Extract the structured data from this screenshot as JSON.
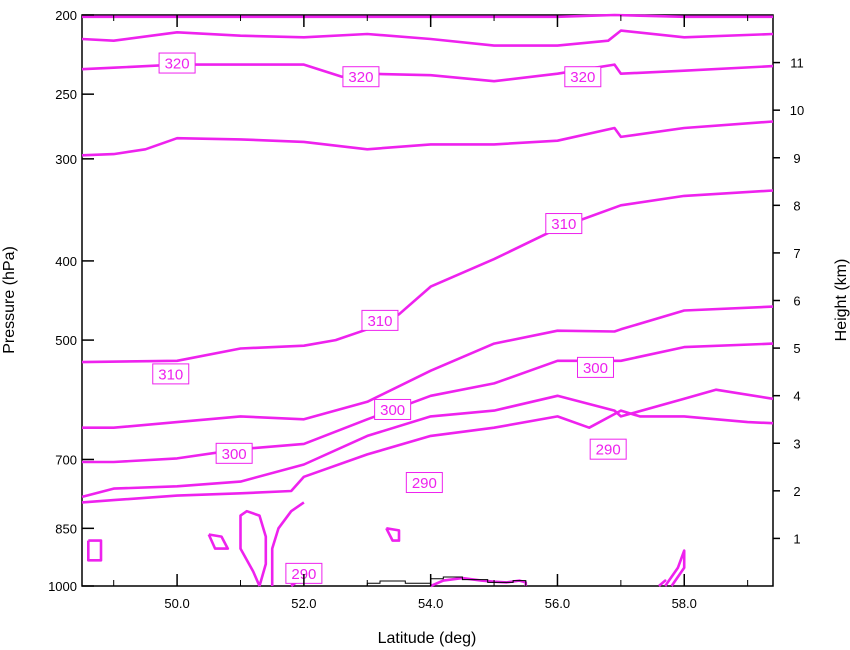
{
  "chart_data": {
    "type": "line",
    "subtype": "contour-cross-section",
    "title": "",
    "xlabel": "Latitude (deg)",
    "ylabel": "Pressure (hPa)",
    "y2label": "Height (km)",
    "xlim": [
      48.5,
      59.4
    ],
    "ylim": [
      1000,
      200
    ],
    "yscale": "log",
    "y2lim": [
      0,
      12
    ],
    "x_ticks": [
      {
        "value": 50,
        "label": "50.0"
      },
      {
        "value": 52,
        "label": "52.0"
      },
      {
        "value": 54,
        "label": "54.0"
      },
      {
        "value": 56,
        "label": "56.0"
      },
      {
        "value": 58,
        "label": "58.0"
      }
    ],
    "y_ticks": [
      {
        "value": 200,
        "label": "200"
      },
      {
        "value": 250,
        "label": "250"
      },
      {
        "value": 300,
        "label": "300"
      },
      {
        "value": 400,
        "label": "400"
      },
      {
        "value": 500,
        "label": "500"
      },
      {
        "value": 700,
        "label": "700"
      },
      {
        "value": 850,
        "label": "850"
      },
      {
        "value": 1000,
        "label": "1000"
      }
    ],
    "y2_ticks": [
      {
        "value": 1,
        "label": "1"
      },
      {
        "value": 2,
        "label": "2"
      },
      {
        "value": 3,
        "label": "3"
      },
      {
        "value": 4,
        "label": "4"
      },
      {
        "value": 5,
        "label": "5"
      },
      {
        "value": 6,
        "label": "6"
      },
      {
        "value": 7,
        "label": "7"
      },
      {
        "value": 8,
        "label": "8"
      },
      {
        "value": 9,
        "label": "9"
      },
      {
        "value": 10,
        "label": "10"
      },
      {
        "value": 11,
        "label": "11"
      }
    ],
    "contour_color": "#ee22ee",
    "terrain_color": "#000000",
    "contours": [
      {
        "x": [
          48.5,
          50.0,
          52.0,
          54.0,
          56.0,
          56.9,
          58.0,
          59.4
        ],
        "y": [
          201,
          201,
          201,
          201,
          201,
          200,
          201,
          201
        ]
      },
      {
        "x": [
          48.5,
          49.0,
          50.0,
          51.0,
          52.0,
          53.0,
          54.0,
          55.0,
          56.0,
          56.8,
          57.0,
          58.0,
          59.4
        ],
        "y": [
          214,
          215,
          210,
          212,
          213,
          211,
          214,
          218,
          218,
          215,
          209,
          213,
          211
        ]
      },
      {
        "x": [
          48.5,
          49.0,
          50.0,
          51.0,
          52.0,
          52.6,
          53.0,
          54.0,
          55.0,
          56.0,
          56.9,
          57.0,
          58.0,
          59.4
        ],
        "y": [
          233,
          232,
          230,
          230,
          230,
          238,
          236,
          237,
          241,
          236,
          230,
          236,
          234,
          231
        ]
      },
      {
        "x": [
          48.5,
          49.0,
          49.5,
          50.0,
          51.0,
          52.0,
          53.0,
          54.0,
          55.0,
          56.0,
          56.9,
          57.0,
          58.0,
          59.4
        ],
        "y": [
          297,
          296,
          292,
          283,
          284,
          286,
          292,
          288,
          288,
          285,
          275,
          282,
          275,
          270
        ]
      },
      {
        "x": [
          48.5,
          50.0,
          51.0,
          52.0,
          52.5,
          53.0,
          53.5,
          54.0,
          55.0,
          56.0,
          57.0,
          58.0,
          59.4
        ],
        "y": [
          532,
          530,
          512,
          508,
          500,
          485,
          465,
          430,
          398,
          365,
          342,
          333,
          328
        ]
      },
      {
        "x": [
          48.5,
          49.0,
          50.0,
          51.0,
          52.0,
          53.0,
          54.0,
          55.0,
          56.0,
          56.9,
          57.0,
          58.0,
          59.4
        ],
        "y": [
          640,
          640,
          630,
          620,
          625,
          595,
          545,
          505,
          487,
          488,
          485,
          460,
          455
        ]
      },
      {
        "x": [
          48.5,
          49.0,
          50.0,
          51.0,
          52.0,
          53.0,
          54.0,
          55.0,
          56.0,
          56.9,
          57.0,
          58.0,
          59.4
        ],
        "y": [
          705,
          705,
          698,
          680,
          670,
          625,
          585,
          565,
          530,
          530,
          530,
          510,
          505
        ]
      },
      {
        "x": [
          48.5,
          49.0,
          50.0,
          51.0,
          52.0,
          53.0,
          54.0,
          55.0,
          56.0,
          56.9,
          57.0,
          58.0,
          58.5,
          59.4
        ],
        "y": [
          778,
          760,
          755,
          745,
          710,
          655,
          620,
          610,
          585,
          610,
          620,
          590,
          575,
          590
        ]
      },
      {
        "x": [
          48.5,
          49.0,
          50.0,
          51.0,
          51.8,
          52.0,
          53.0,
          54.0,
          55.0,
          56.0,
          56.5,
          57.0,
          57.3,
          58.0,
          59.0,
          59.4
        ],
        "y": [
          790,
          785,
          775,
          770,
          765,
          735,
          690,
          655,
          640,
          620,
          640,
          610,
          620,
          620,
          630,
          632
        ]
      },
      {
        "x": [
          52.0,
          51.8,
          51.6,
          51.5,
          51.5,
          51.5
        ],
        "y": [
          790,
          810,
          850,
          900,
          960,
          1000
        ]
      },
      {
        "x": [
          51.3,
          51.4,
          51.4,
          51.3,
          51.1,
          51.0,
          51.0,
          51.2,
          51.3
        ],
        "y": [
          1000,
          940,
          870,
          820,
          810,
          820,
          900,
          960,
          1000
        ]
      },
      {
        "x": [
          51.8,
          52.0,
          52.0,
          51.9,
          51.8
        ],
        "y": [
          1000,
          975,
          960,
          980,
          1000
        ]
      },
      {
        "x": [
          48.6,
          48.8,
          48.8,
          48.6,
          48.6
        ],
        "y": [
          880,
          880,
          930,
          930,
          880
        ]
      },
      {
        "x": [
          50.5,
          50.7,
          50.8,
          50.6,
          50.5
        ],
        "y": [
          865,
          870,
          900,
          900,
          865
        ]
      },
      {
        "x": [
          53.3,
          53.5,
          53.5,
          53.4,
          53.3
        ],
        "y": [
          850,
          855,
          880,
          880,
          850
        ]
      },
      {
        "x": [
          54.0,
          54.2,
          54.5,
          54.8,
          55.0,
          55.2,
          55.4,
          55.5,
          55.5
        ],
        "y": [
          1000,
          985,
          978,
          985,
          988,
          990,
          985,
          990,
          1000
        ]
      },
      {
        "x": [
          57.7,
          57.9,
          58.0,
          58.0,
          57.8
        ],
        "y": [
          1000,
          950,
          905,
          950,
          1000
        ]
      },
      {
        "x": [
          57.6,
          57.7,
          57.6
        ],
        "y": [
          1000,
          985,
          1000
        ]
      }
    ],
    "contour_labels": [
      {
        "text": "320",
        "x": 50.0,
        "y": 229
      },
      {
        "text": "320",
        "x": 52.9,
        "y": 238
      },
      {
        "text": "320",
        "x": 56.4,
        "y": 238
      },
      {
        "text": "310",
        "x": 56.1,
        "y": 360
      },
      {
        "text": "310",
        "x": 53.2,
        "y": 473
      },
      {
        "text": "310",
        "x": 49.9,
        "y": 550
      },
      {
        "text": "300",
        "x": 56.6,
        "y": 540
      },
      {
        "text": "300",
        "x": 53.4,
        "y": 608
      },
      {
        "text": "300",
        "x": 50.9,
        "y": 688
      },
      {
        "text": "290",
        "x": 56.8,
        "y": 680
      },
      {
        "text": "290",
        "x": 53.9,
        "y": 747
      },
      {
        "text": "290",
        "x": 52.0,
        "y": 965
      }
    ],
    "terrain": {
      "x": [
        53.0,
        53.0,
        53.2,
        53.2,
        53.6,
        53.6,
        54.0,
        54.0,
        54.2,
        54.2,
        54.5,
        54.5,
        54.9,
        54.9,
        55.3,
        55.3,
        55.5,
        55.5
      ],
      "y": [
        1000,
        992,
        992,
        986,
        986,
        992,
        992,
        980,
        980,
        975,
        975,
        982,
        982,
        990,
        990,
        985,
        985,
        1000
      ]
    }
  }
}
